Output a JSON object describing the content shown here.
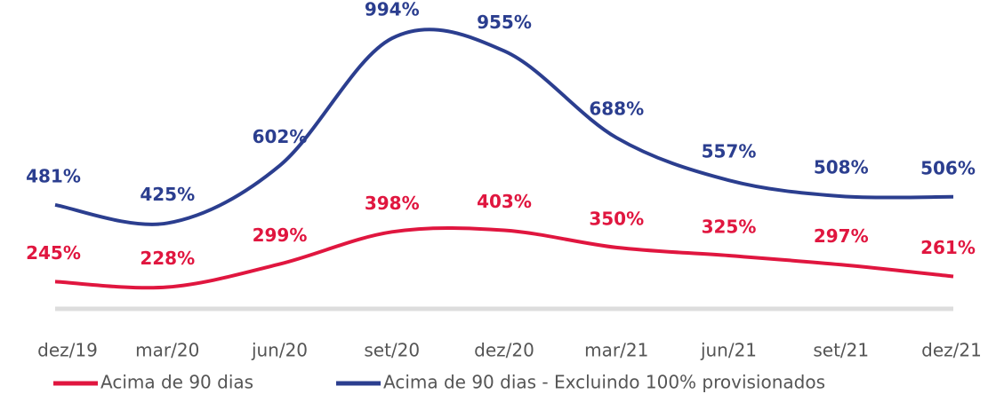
{
  "chart_data": {
    "type": "line",
    "categories": [
      "dez/19",
      "mar/20",
      "jun/20",
      "set/20",
      "dez/20",
      "mar/21",
      "jun/21",
      "set/21",
      "dez/21"
    ],
    "series": [
      {
        "name": "Acima de 90 dias",
        "color": "#e0163f",
        "values": [
          245,
          228,
          299,
          398,
          403,
          350,
          325,
          297,
          261
        ],
        "value_labels": [
          "245%",
          "228%",
          "299%",
          "398%",
          "403%",
          "350%",
          "325%",
          "297%",
          "261%"
        ]
      },
      {
        "name": "Acima de 90 dias - Excluindo 100% provisionados",
        "color": "#2b3e8f",
        "values": [
          481,
          425,
          602,
          994,
          955,
          688,
          557,
          508,
          506
        ],
        "value_labels": [
          "481%",
          "425%",
          "602%",
          "994%",
          "955%",
          "688%",
          "557%",
          "508%",
          "506%"
        ]
      }
    ]
  }
}
